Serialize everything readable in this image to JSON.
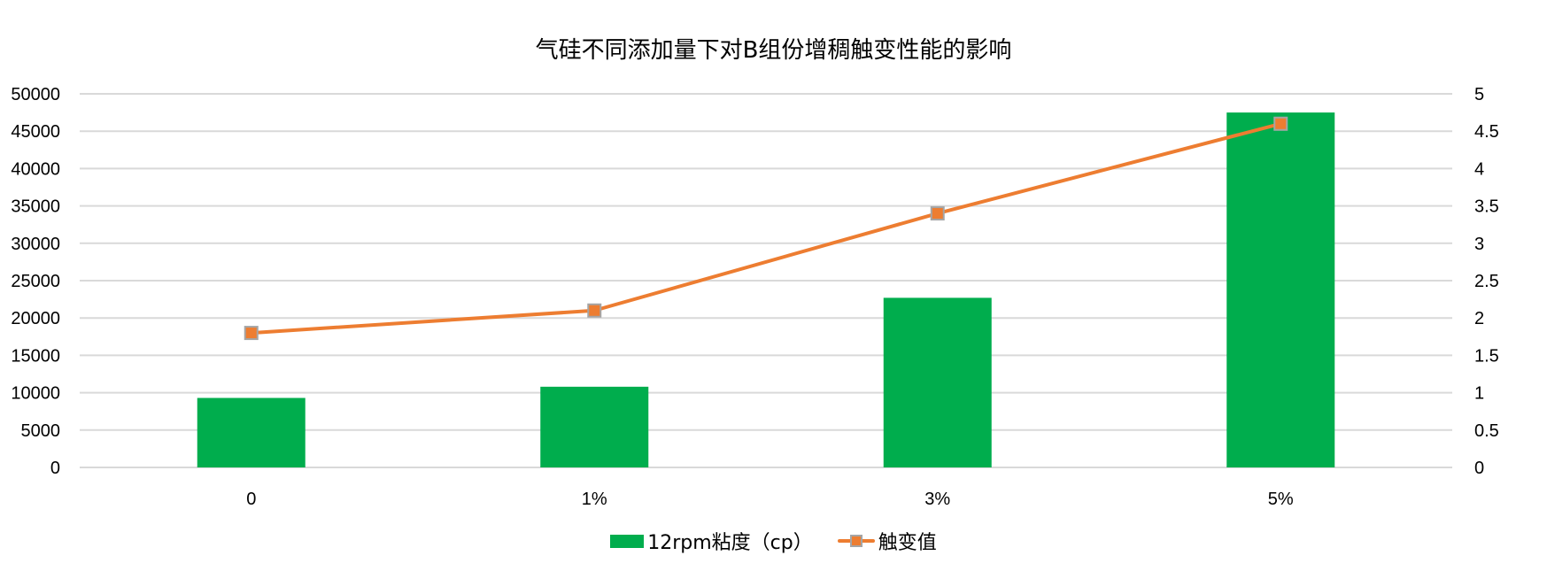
{
  "chart_data": {
    "type": "bar+line",
    "title": "气硅不同添加量下对B组份增稠触变性能的影响",
    "categories": [
      "0",
      "1%",
      "3%",
      "5%"
    ],
    "series": [
      {
        "name": "12rpm粘度（cp）",
        "type": "bar",
        "axis": "left",
        "color": "#00ad4d",
        "values": [
          9300,
          10800,
          22700,
          47500
        ]
      },
      {
        "name": "触变值",
        "type": "line",
        "axis": "right",
        "color": "#ed7d31",
        "marker": "square",
        "values": [
          1.8,
          2.1,
          3.4,
          4.6
        ]
      }
    ],
    "y_left": {
      "label": "",
      "ylim": [
        0,
        50000
      ],
      "ticks": [
        "0",
        "5000",
        "10000",
        "15000",
        "20000",
        "25000",
        "30000",
        "35000",
        "40000",
        "45000",
        "50000"
      ]
    },
    "y_right": {
      "label": "",
      "ylim": [
        0,
        5
      ],
      "ticks": [
        "0",
        "0.5",
        "1",
        "1.5",
        "2",
        "2.5",
        "3",
        "3.5",
        "4",
        "4.5",
        "5"
      ]
    },
    "xlabel": "",
    "grid": true,
    "legend_position": "bottom"
  },
  "legend": {
    "bar_label": "12rpm粘度（cp）",
    "line_label": "触变值"
  }
}
